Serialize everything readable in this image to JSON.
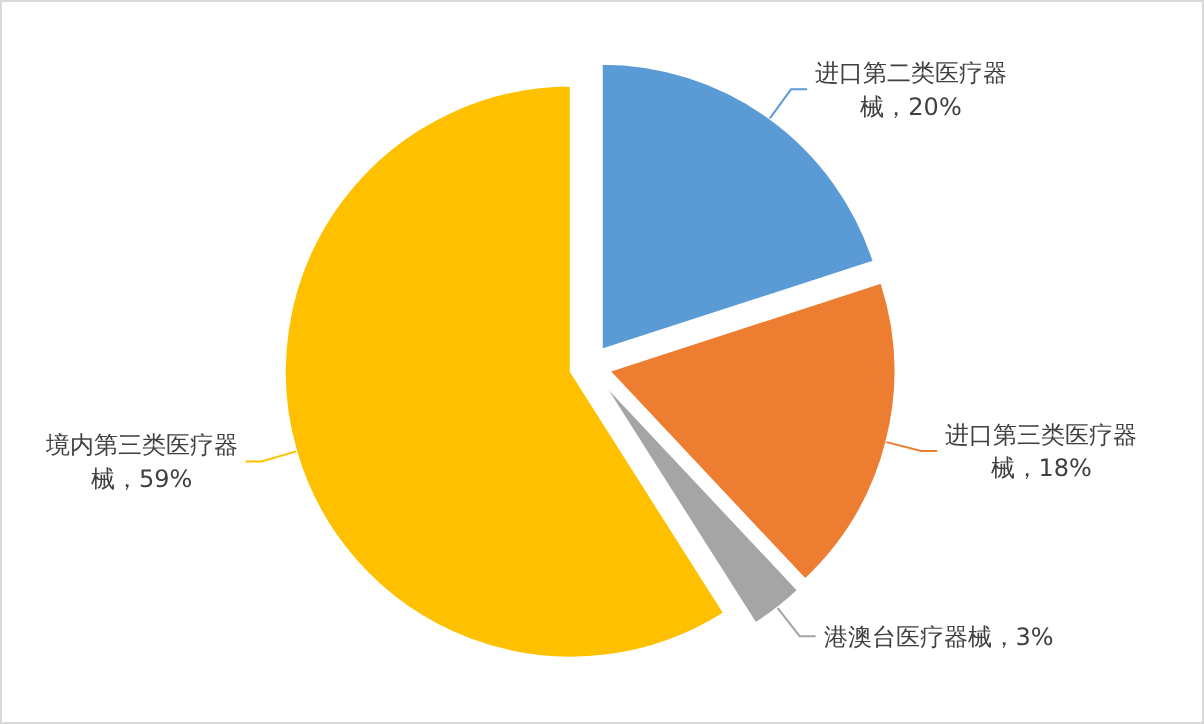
{
  "chart_data": {
    "type": "pie",
    "categories": [
      "进口第二类医疗器械",
      "进口第三类医疗器械",
      "港澳台医疗器械",
      "境内第三类医疗器械"
    ],
    "values": [
      20,
      18,
      3,
      59
    ],
    "value_labels": [
      "20%",
      "18%",
      "3%",
      "59%"
    ],
    "colors": [
      "#5b9bd5",
      "#ed7d31",
      "#a5a5a5",
      "#ffc000"
    ]
  }
}
